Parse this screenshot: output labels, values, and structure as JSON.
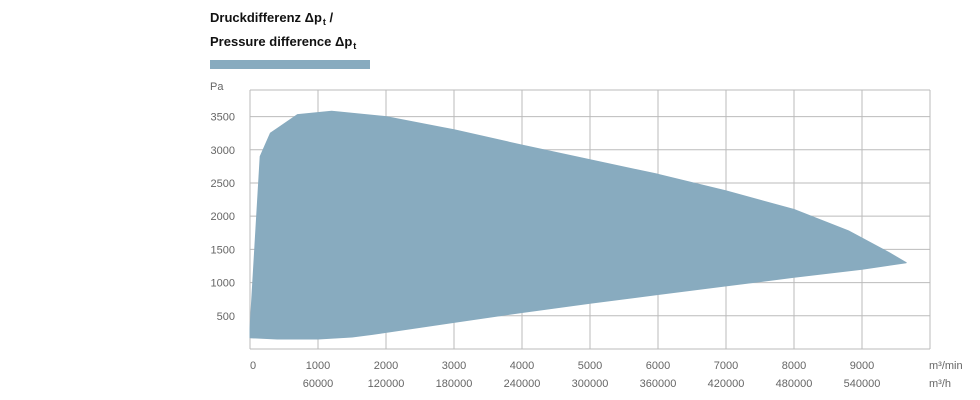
{
  "title": {
    "line1_prefix": "Druckdifferenz Δp",
    "line1_sub": "t",
    "line1_suffix": " /",
    "line2_prefix": "Pressure difference Δp",
    "line2_sub": "t"
  },
  "colors": {
    "fill": "#88abbf",
    "grid": "#bbbbbb",
    "text": "#666666"
  },
  "chart_data": {
    "type": "area",
    "ylabel": "Pa",
    "xlabel_primary": "m³/min",
    "xlabel_secondary": "m³/h",
    "xlim": [
      0,
      10000
    ],
    "ylim": [
      0,
      3900
    ],
    "grid": true,
    "x_ticks": [
      0,
      1000,
      2000,
      3000,
      4000,
      5000,
      6000,
      7000,
      8000,
      9000
    ],
    "x_tick_labels": [
      "0",
      "1000",
      "2000",
      "3000",
      "4000",
      "5000",
      "6000",
      "7000",
      "8000",
      "9000"
    ],
    "x2_tick_labels": [
      "60000",
      "120000",
      "180000",
      "240000",
      "300000",
      "360000",
      "420000",
      "480000",
      "540000"
    ],
    "y_ticks": [
      500,
      1000,
      1500,
      2000,
      2500,
      3000,
      3500
    ],
    "y_tick_labels": [
      "500",
      "1000",
      "1500",
      "2000",
      "2500",
      "3000",
      "3500"
    ],
    "series": [
      {
        "upper": [
          {
            "x": 0,
            "y": 300
          },
          {
            "x": 150,
            "y": 2900
          },
          {
            "x": 300,
            "y": 3250
          },
          {
            "x": 700,
            "y": 3530
          },
          {
            "x": 1200,
            "y": 3580
          },
          {
            "x": 2000,
            "y": 3500
          },
          {
            "x": 3000,
            "y": 3300
          },
          {
            "x": 4000,
            "y": 3070
          },
          {
            "x": 5000,
            "y": 2850
          },
          {
            "x": 6000,
            "y": 2630
          },
          {
            "x": 7000,
            "y": 2380
          },
          {
            "x": 8000,
            "y": 2100
          },
          {
            "x": 8800,
            "y": 1780
          },
          {
            "x": 9400,
            "y": 1450
          },
          {
            "x": 9650,
            "y": 1300
          }
        ],
        "lower": [
          {
            "x": 0,
            "y": 170
          },
          {
            "x": 400,
            "y": 150
          },
          {
            "x": 1000,
            "y": 150
          },
          {
            "x": 1500,
            "y": 180
          },
          {
            "x": 1800,
            "y": 220
          },
          {
            "x": 3000,
            "y": 400
          },
          {
            "x": 4000,
            "y": 550
          },
          {
            "x": 5000,
            "y": 690
          },
          {
            "x": 6000,
            "y": 820
          },
          {
            "x": 7000,
            "y": 950
          },
          {
            "x": 8000,
            "y": 1080
          },
          {
            "x": 9000,
            "y": 1200
          },
          {
            "x": 9650,
            "y": 1300
          }
        ]
      }
    ]
  }
}
